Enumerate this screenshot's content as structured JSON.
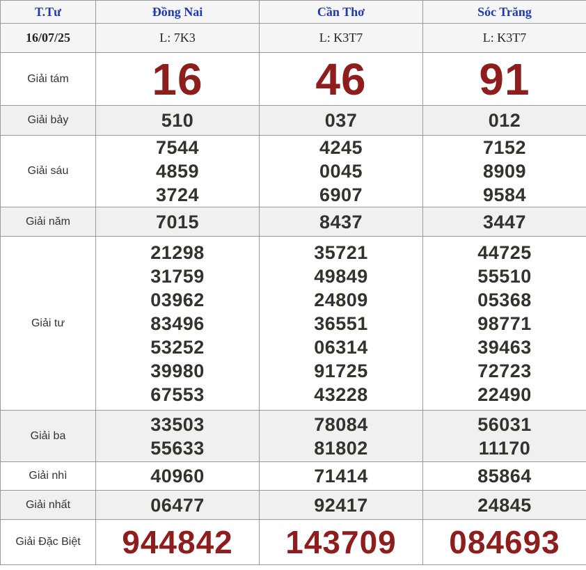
{
  "table": {
    "header": {
      "day_label": "T.Tư",
      "columns": [
        "Đồng Nai",
        "Cần Thơ",
        "Sóc Trăng"
      ]
    },
    "date_row": {
      "date": "16/07/25",
      "codes": [
        "L: 7K3",
        "L: K3T7",
        "L: K3T7"
      ]
    },
    "prize_rows": [
      {
        "label": "Giải tám",
        "style": "big-red",
        "bg": "white",
        "values": [
          [
            "16"
          ],
          [
            "46"
          ],
          [
            "91"
          ]
        ]
      },
      {
        "label": "Giải bảy",
        "style": "normal",
        "bg": "gray",
        "values": [
          [
            "510"
          ],
          [
            "037"
          ],
          [
            "012"
          ]
        ]
      },
      {
        "label": "Giải sáu",
        "style": "normal",
        "bg": "white",
        "values": [
          [
            "7544",
            "4859",
            "3724"
          ],
          [
            "4245",
            "0045",
            "6907"
          ],
          [
            "7152",
            "8909",
            "9584"
          ]
        ]
      },
      {
        "label": "Giải năm",
        "style": "normal",
        "bg": "gray",
        "values": [
          [
            "7015"
          ],
          [
            "8437"
          ],
          [
            "3447"
          ]
        ]
      },
      {
        "label": "Giải tư",
        "style": "normal",
        "bg": "white",
        "values": [
          [
            "21298",
            "31759",
            "03962",
            "83496",
            "53252",
            "39980",
            "67553"
          ],
          [
            "35721",
            "49849",
            "24809",
            "36551",
            "06314",
            "91725",
            "43228"
          ],
          [
            "44725",
            "55510",
            "05368",
            "98771",
            "39463",
            "72723",
            "22490"
          ]
        ]
      },
      {
        "label": "Giải ba",
        "style": "normal",
        "bg": "gray",
        "values": [
          [
            "33503",
            "55633"
          ],
          [
            "78084",
            "81802"
          ],
          [
            "56031",
            "11170"
          ]
        ]
      },
      {
        "label": "Giải nhì",
        "style": "normal",
        "bg": "white",
        "values": [
          [
            "40960"
          ],
          [
            "71414"
          ],
          [
            "85864"
          ]
        ]
      },
      {
        "label": "Giải nhất",
        "style": "normal",
        "bg": "gray",
        "values": [
          [
            "06477"
          ],
          [
            "92417"
          ],
          [
            "24845"
          ]
        ]
      },
      {
        "label": "Giải Đặc Biệt",
        "style": "special-red",
        "bg": "white",
        "values": [
          [
            "944842"
          ],
          [
            "143709"
          ],
          [
            "084693"
          ]
        ]
      }
    ],
    "colors": {
      "accent_red": "#8e1e1e",
      "header_blue": "#2038b8",
      "number_dark": "#33332c",
      "row_gray_bg": "#f0f0f0",
      "head_bg": "#f5f5f5",
      "border": "#999999"
    }
  }
}
